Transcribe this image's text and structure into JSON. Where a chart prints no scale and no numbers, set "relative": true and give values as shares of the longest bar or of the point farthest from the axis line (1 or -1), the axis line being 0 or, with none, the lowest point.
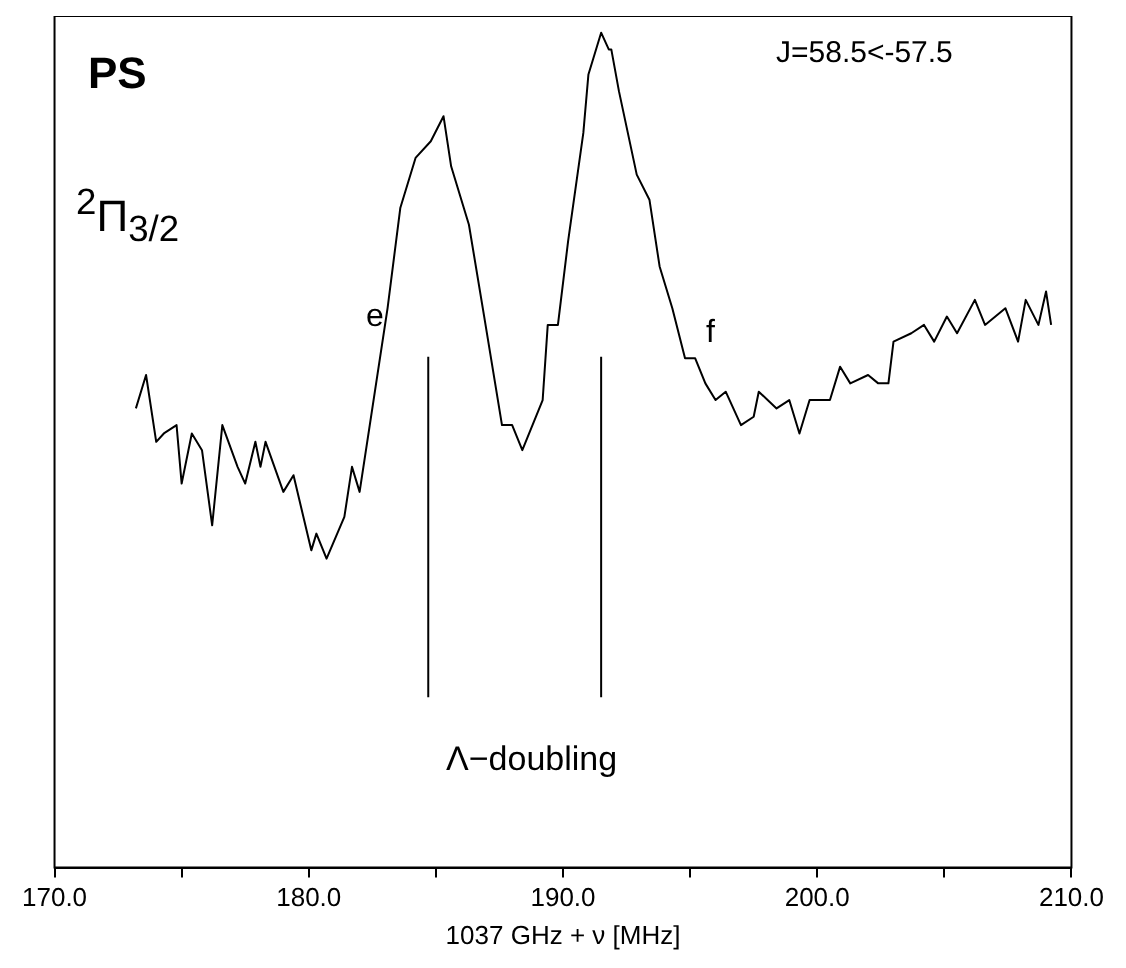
{
  "chart_data": {
    "type": "line",
    "title": "PS",
    "xlabel": "1037 GHz + ν [MHz]",
    "relative": true,
    "color": "#000000",
    "marker": "none",
    "grid": false,
    "legend": false,
    "x": [
      173.2,
      173.6,
      174.0,
      174.3,
      174.8,
      175.0,
      175.4,
      175.8,
      176.2,
      176.6,
      177.2,
      177.5,
      177.9,
      178.1,
      178.3,
      179.0,
      179.4,
      180.1,
      180.3,
      180.7,
      181.4,
      181.7,
      182.0,
      182.6,
      183.1,
      183.6,
      184.2,
      184.8,
      185.3,
      185.6,
      186.3,
      186.9,
      187.6,
      188.0,
      188.4,
      189.2,
      189.4,
      189.8,
      190.2,
      190.8,
      191.0,
      191.5,
      191.8,
      191.9,
      192.2,
      192.9,
      193.4,
      193.8,
      194.3,
      194.8,
      195.2,
      195.6,
      196.0,
      196.4,
      197.0,
      197.5,
      197.7,
      198.4,
      198.9,
      199.3,
      199.7,
      200.5,
      200.9,
      201.3,
      202.0,
      202.4,
      202.8,
      203.0,
      203.7,
      204.2,
      204.6,
      205.1,
      205.5,
      206.2,
      206.6,
      207.4,
      207.9,
      208.2,
      208.7,
      209.0,
      209.2
    ],
    "values": [
      0.55,
      0.59,
      0.51,
      0.52,
      0.53,
      0.46,
      0.52,
      0.5,
      0.41,
      0.53,
      0.48,
      0.46,
      0.51,
      0.48,
      0.51,
      0.45,
      0.47,
      0.38,
      0.4,
      0.37,
      0.42,
      0.48,
      0.45,
      0.57,
      0.67,
      0.79,
      0.85,
      0.87,
      0.9,
      0.84,
      0.77,
      0.66,
      0.53,
      0.53,
      0.5,
      0.56,
      0.65,
      0.65,
      0.75,
      0.88,
      0.95,
      1,
      0.98,
      0.98,
      0.93,
      0.83,
      0.8,
      0.72,
      0.67,
      0.61,
      0.61,
      0.58,
      0.56,
      0.57,
      0.53,
      0.54,
      0.57,
      0.55,
      0.56,
      0.52,
      0.56,
      0.56,
      0.6,
      0.58,
      0.59,
      0.58,
      0.58,
      0.63,
      0.64,
      0.65,
      0.63,
      0.66,
      0.64,
      0.68,
      0.65,
      0.67,
      0.63,
      0.68,
      0.65,
      0.69,
      0.65
    ],
    "xlim": [
      170,
      210
    ],
    "xticks": [
      {
        "value": 170,
        "label": "170.0"
      },
      {
        "value": 175,
        "label": null
      },
      {
        "value": 180,
        "label": "180.0"
      },
      {
        "value": 185,
        "label": null
      },
      {
        "value": 190,
        "label": "190.0"
      },
      {
        "value": 195,
        "label": null
      },
      {
        "value": 200,
        "label": "200.0"
      },
      {
        "value": 205,
        "label": null
      },
      {
        "value": 210,
        "label": "210.0"
      }
    ],
    "ref_lines": [
      {
        "axis": "x",
        "value": 184.7,
        "color": "#000000"
      },
      {
        "axis": "x",
        "value": 191.5,
        "color": "#000000"
      }
    ],
    "annotations": [
      "J=58.5<-57.5",
      "$^{2}$Π$_{3/2}$",
      "e",
      "f",
      "Λ−doubling"
    ]
  }
}
